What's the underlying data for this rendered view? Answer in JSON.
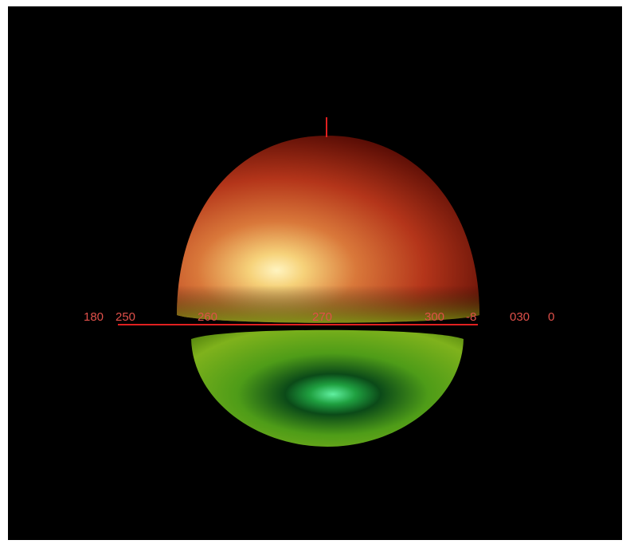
{
  "axis_labels": [
    "180",
    "250",
    "260",
    "270",
    "300",
    "-8",
    "030",
    "0"
  ]
}
